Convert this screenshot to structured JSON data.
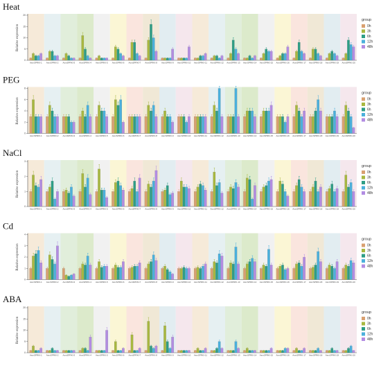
{
  "colors": {
    "series": [
      "#D9A070",
      "#A8B840",
      "#2E9E86",
      "#4BB0DC",
      "#B28CE2"
    ],
    "bands": [
      "#F4E6D2",
      "#E2EDF0",
      "#DCEBD5",
      "#D6E6C2",
      "#EEEEEE",
      "#FAF4CE",
      "#F9E0D8",
      "#EDE4CF",
      "#DDEAEF",
      "#F3E3EA"
    ],
    "axis": "#555555",
    "bar_outline": "#666666"
  },
  "legend": {
    "title": "group",
    "labels": [
      "0h",
      "3h",
      "6h",
      "12h",
      "48h"
    ]
  },
  "chart_data": [
    {
      "type": "bar",
      "title": "Heat",
      "ylabel": "Relative expression",
      "xlabel": "",
      "ylim": [
        0,
        20
      ],
      "yticks": [
        0,
        5,
        10,
        15,
        20
      ],
      "categories": [
        "AsmSPRKI-1",
        "AsmSPRKI-2",
        "AsmSPRKI-3",
        "AsmSPRKI-4",
        "AsmSPRKI-5",
        "AsmSPRKI-6",
        "AsmSPRKI-7",
        "AsmSPRKI-8",
        "AsmSPRKI-9",
        "AsmSPRKI-10",
        "AsmSPRKI-11",
        "AsmSPRKI-12",
        "AsmSPRKI-13",
        "AsmSPRKI-14",
        "AsmSPRKI-15",
        "AsmSPRKI-16",
        "AsmSPRKI-17",
        "AsmSPRKI-18",
        "AsmSPRKI-19",
        "AsmSPRKI-20"
      ],
      "series": [
        {
          "name": "0h",
          "values": [
            1,
            1,
            1,
            1,
            1,
            1,
            1,
            1,
            1,
            1,
            1,
            1,
            1,
            1,
            1,
            1,
            1,
            1,
            1,
            1
          ]
        },
        {
          "name": "3h",
          "values": [
            3,
            4,
            3,
            11,
            2,
            6,
            8,
            9,
            1,
            1,
            1,
            2,
            3,
            1,
            3,
            2,
            4,
            5,
            3,
            3
          ]
        },
        {
          "name": "6h",
          "values": [
            2,
            4,
            2,
            5,
            1,
            5,
            8,
            16,
            1,
            1,
            2,
            2,
            9,
            2,
            5,
            3,
            8,
            5,
            4,
            9
          ]
        },
        {
          "name": "12h",
          "values": [
            2,
            2,
            1,
            2,
            1,
            3,
            3,
            10,
            1,
            1,
            2,
            1,
            5,
            1,
            4,
            3,
            4,
            3,
            3,
            7
          ]
        },
        {
          "name": "48h",
          "values": [
            3,
            2,
            1,
            1,
            1,
            2,
            2,
            4,
            5,
            6,
            3,
            2,
            3,
            2,
            4,
            6,
            3,
            2,
            2,
            6
          ]
        }
      ]
    },
    {
      "type": "bar",
      "title": "PEG",
      "ylabel": "Relative expression",
      "xlabel": "",
      "ylim": [
        0,
        8
      ],
      "yticks": [
        0,
        2,
        4,
        6,
        8
      ],
      "categories": [
        "AsmSPRKI-1",
        "AsmSPRKI-2",
        "AsmSPRKI-3",
        "AsmSPRKI-4",
        "AsmSPRKI-5",
        "AsmSPRKI-6",
        "AsmSPRKI-7",
        "AsmSPRKI-8",
        "AsmSPRKI-9",
        "AsmSPRKI-10",
        "AsmSPRKI-11",
        "AsmSPRKI-12",
        "AsmSPRKI-13",
        "AsmSPRKI-14",
        "AsmSPRKI-15",
        "AsmSPRKI-16",
        "AsmSPRKI-17",
        "AsmSPRKI-18",
        "AsmSPRKI-19",
        "AsmSPRKI-20"
      ],
      "series": [
        {
          "name": "0h",
          "values": [
            3,
            3,
            3,
            3,
            3,
            3,
            3,
            3,
            3,
            3,
            3,
            3,
            3,
            3,
            3,
            3,
            3,
            3,
            3,
            3
          ]
        },
        {
          "name": "3h",
          "values": [
            6,
            5,
            3,
            4,
            5,
            6,
            3,
            5,
            4,
            3,
            3,
            5,
            3,
            4,
            4,
            3,
            5,
            3,
            3,
            5
          ]
        },
        {
          "name": "6h",
          "values": [
            3,
            4,
            3,
            3,
            4,
            5,
            3,
            4,
            3,
            3,
            3,
            4,
            3,
            4,
            4,
            3,
            4,
            4,
            3,
            4
          ]
        },
        {
          "name": "12h",
          "values": [
            3,
            3,
            2,
            5,
            4,
            6,
            3,
            5,
            3,
            2,
            3,
            8,
            8,
            4,
            4,
            2,
            3,
            6,
            4,
            3
          ]
        },
        {
          "name": "48h",
          "values": [
            3,
            3,
            2,
            3,
            3,
            2,
            3,
            3,
            2,
            3,
            3,
            3,
            3,
            3,
            5,
            3,
            4,
            4,
            3,
            1
          ]
        }
      ]
    },
    {
      "type": "bar",
      "title": "NaCl",
      "ylabel": "Relative expression",
      "xlabel": "",
      "ylim": [
        0,
        3
      ],
      "yticks": [
        0,
        1,
        2,
        3
      ],
      "categories": [
        "AsmSPRKI-1",
        "AsmSPRKI-2",
        "AsmSPRKI-3",
        "AsmSPRKI-4",
        "AsmSPRKI-5",
        "AsmSPRKI-6",
        "AsmSPRKI-7",
        "AsmSPRKI-8",
        "AsmSPRKI-9",
        "AsmSPRKI-10",
        "AsmSPRKI-11",
        "AsmSPRKI-12",
        "AsmSPRKI-13",
        "AsmSPRKI-14",
        "AsmSPRKI-15",
        "AsmSPRKI-16",
        "AsmSPRKI-17",
        "AsmSPRKI-18",
        "AsmSPRKI-19",
        "AsmSPRKI-20"
      ],
      "series": [
        {
          "name": "0h",
          "values": [
            1,
            1,
            1,
            1,
            1,
            1,
            1,
            1,
            1,
            1,
            1,
            1,
            1,
            1,
            1,
            1,
            1,
            1,
            1,
            1
          ]
        },
        {
          "name": "3h",
          "values": [
            2.1,
            1.3,
            1.1,
            2.2,
            2.5,
            1.6,
            1.2,
            1.5,
            1.1,
            1.7,
            1.3,
            2.3,
            1.3,
            1.9,
            1.3,
            1.7,
            1.4,
            1.3,
            1.2,
            2.1
          ]
        },
        {
          "name": "6h",
          "values": [
            1.4,
            1.7,
            0.9,
            1.3,
            1.1,
            1.7,
            1.7,
            1.3,
            1.4,
            1.3,
            1.5,
            1.4,
            1.2,
            1.8,
            1.4,
            1.5,
            1.8,
            1.7,
            1.5,
            1.3
          ]
        },
        {
          "name": "12h",
          "values": [
            1.3,
            0.5,
            1.3,
            1.9,
            1.1,
            1.4,
            1.0,
            1.7,
            0.8,
            1.3,
            1.4,
            1.6,
            1.6,
            0.5,
            1.7,
            1.0,
            1.3,
            1.0,
            1.0,
            1.6
          ]
        },
        {
          "name": "48h",
          "values": [
            1.8,
            1.0,
            0.7,
            0.8,
            0.6,
            1.1,
            1.9,
            2.4,
            0.9,
            1.2,
            1.1,
            0.9,
            1.3,
            1.4,
            1.8,
            0.7,
            1.0,
            1.3,
            1.2,
            1.0
          ]
        }
      ]
    },
    {
      "type": "bar",
      "title": "Cd",
      "ylabel": "Relative expression",
      "xlabel": "",
      "ylim": [
        0,
        4
      ],
      "yticks": [
        0,
        1,
        2,
        3,
        4
      ],
      "categories": [
        "AsmSPRKI-1",
        "AsmSPRKI-2",
        "AsmSPRKI-3",
        "AsmSPRKI-4",
        "AsmSPRKI-5",
        "AsmSPRKI-6",
        "AsmSPRKI-7",
        "AsmSPRKI-8",
        "AsmSPRKI-9",
        "AsmSPRKI-10",
        "AsmSPRKI-11",
        "AsmSPRKI-12",
        "AsmSPRKI-13",
        "AsmSPRKI-14",
        "AsmSPRKI-15",
        "AsmSPRKI-16",
        "AsmSPRKI-17",
        "AsmSPRKI-18",
        "AsmSPRKI-19",
        "AsmSPRKI-20"
      ],
      "series": [
        {
          "name": "0h",
          "values": [
            1,
            1,
            1,
            1,
            1,
            1,
            1,
            1,
            1,
            1,
            1,
            1,
            1,
            1,
            1,
            1,
            1,
            1,
            1,
            1
          ]
        },
        {
          "name": "3h",
          "values": [
            2.1,
            2.2,
            0.4,
            1.4,
            1.6,
            1.3,
            1.1,
            1.4,
            1.2,
            1.0,
            1.1,
            1.6,
            1.5,
            1.4,
            1.3,
            1.2,
            1.4,
            1.1,
            1.3,
            1.3
          ]
        },
        {
          "name": "6h",
          "values": [
            2.3,
            1.8,
            0.3,
            1.3,
            1.1,
            1.1,
            1.2,
            1.6,
            0.9,
            1.1,
            1.0,
            1.5,
            1.4,
            1.6,
            1.2,
            1.3,
            1.5,
            1.3,
            1.2,
            1.2
          ]
        },
        {
          "name": "12h",
          "values": [
            2.6,
            1.4,
            0.4,
            2.1,
            1.2,
            1.1,
            1.2,
            2.2,
            0.7,
            1.0,
            1.2,
            2.3,
            2.9,
            1.9,
            2.7,
            0.9,
            1.2,
            2.5,
            1.0,
            1.7
          ]
        },
        {
          "name": "48h",
          "values": [
            1.5,
            3.0,
            0.5,
            1.3,
            1.2,
            1.6,
            1.5,
            1.7,
            0.5,
            1.0,
            1.4,
            2.1,
            1.4,
            1.6,
            1.3,
            1.0,
            2.0,
            1.6,
            1.6,
            1.5
          ]
        }
      ]
    },
    {
      "type": "bar",
      "title": "ABA",
      "ylabel": "Relative expression",
      "xlabel": "",
      "ylim": [
        0,
        20
      ],
      "yticks": [
        0,
        5,
        10,
        15,
        20
      ],
      "categories": [
        "AsmSPRKI-1",
        "AsmSPRKI-2",
        "AsmSPRKI-3",
        "AsmSPRKI-4",
        "AsmSPRKI-5",
        "AsmSPRKI-6",
        "AsmSPRKI-7",
        "AsmSPRKI-8",
        "AsmSPRKI-9",
        "AsmSPRKI-10",
        "AsmSPRKI-11",
        "AsmSPRKI-12",
        "AsmSPRKI-13",
        "AsmSPRKI-14",
        "AsmSPRKI-15",
        "AsmSPRKI-16",
        "AsmSPRKI-17",
        "AsmSPRKI-18",
        "AsmSPRKI-19",
        "AsmSPRKI-20"
      ],
      "series": [
        {
          "name": "0h",
          "values": [
            1,
            1,
            1,
            1,
            1,
            1,
            1,
            1,
            1,
            1,
            1,
            1,
            1,
            1,
            1,
            1,
            1,
            1,
            1,
            1
          ]
        },
        {
          "name": "3h",
          "values": [
            3,
            1,
            1,
            2,
            1,
            5,
            8,
            14,
            12,
            1,
            2,
            1,
            1,
            2,
            1,
            1,
            2,
            1,
            1,
            1
          ]
        },
        {
          "name": "6h",
          "values": [
            1,
            2,
            1,
            2,
            1,
            1,
            1,
            3,
            5,
            1,
            1,
            2,
            1,
            1,
            1,
            1,
            1,
            1,
            2,
            2
          ]
        },
        {
          "name": "12h",
          "values": [
            1,
            1,
            1,
            1,
            1,
            1,
            1,
            2,
            2,
            1,
            1,
            5,
            5,
            1,
            1,
            2,
            1,
            2,
            1,
            3
          ]
        },
        {
          "name": "48h",
          "values": [
            2,
            1,
            1,
            7,
            10,
            2,
            2,
            3,
            7,
            1,
            2,
            2,
            2,
            1,
            2,
            2,
            2,
            1,
            1,
            1
          ]
        }
      ]
    }
  ]
}
